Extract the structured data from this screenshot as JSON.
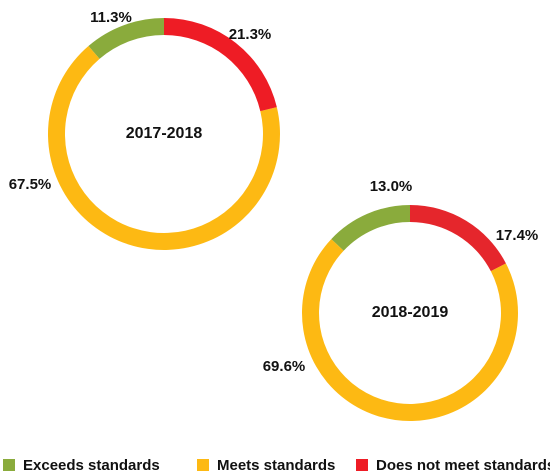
{
  "chart_data": [
    {
      "type": "donut",
      "title": "2017-2018",
      "categories": [
        "Exceeds standards",
        "Meets standards",
        "Does not meet standards"
      ],
      "values": [
        11.3,
        67.5,
        21.3
      ],
      "value_labels": [
        "11.3%",
        "67.5%",
        "21.3%"
      ],
      "colors": [
        "#8aab3c",
        "#fdb913",
        "#ee1c25"
      ]
    },
    {
      "type": "donut",
      "title": "2018-2019",
      "categories": [
        "Exceeds standards",
        "Meets standards",
        "Does not meet standards"
      ],
      "values": [
        13.0,
        69.6,
        17.4
      ],
      "value_labels": [
        "13.0%",
        "69.6%",
        "17.4%"
      ],
      "colors": [
        "#8aab3c",
        "#fdb913",
        "#e5262c"
      ]
    }
  ]
}
